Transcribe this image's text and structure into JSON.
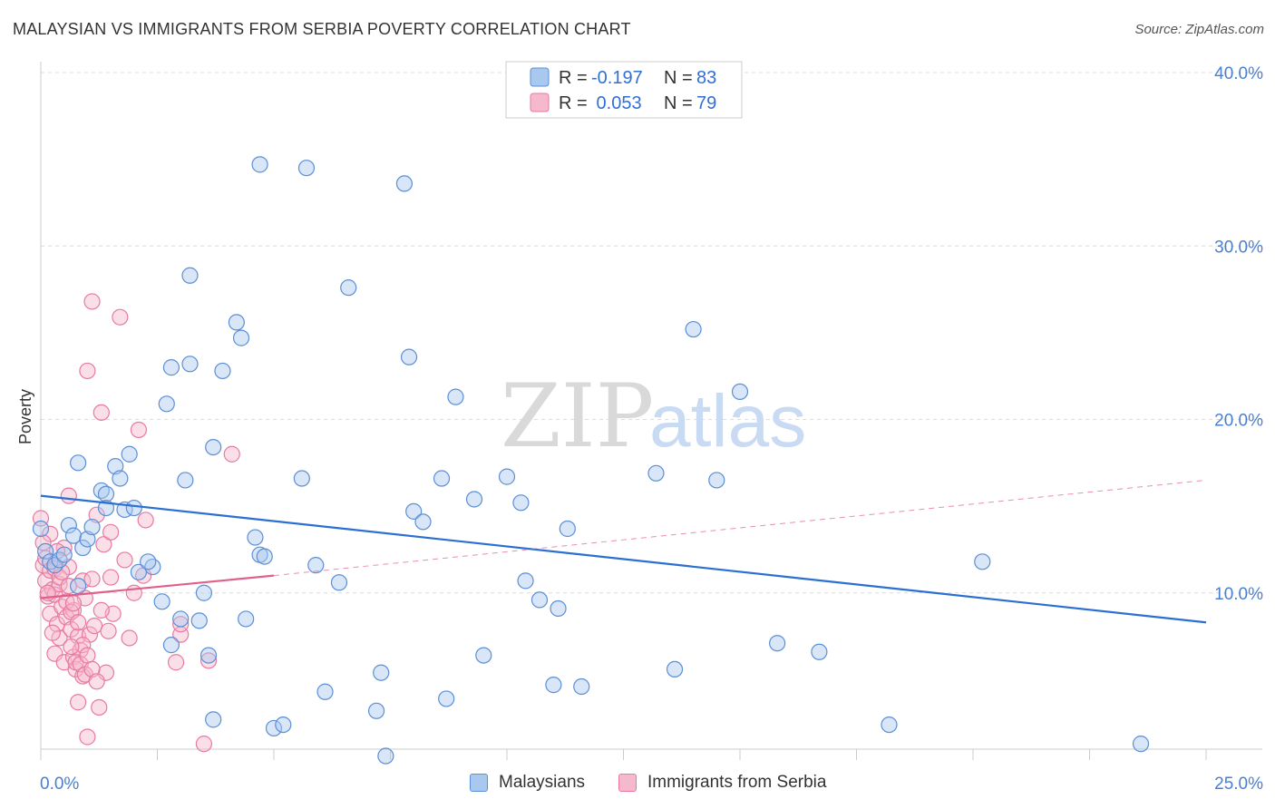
{
  "header": {
    "title": "MALAYSIAN VS IMMIGRANTS FROM SERBIA POVERTY CORRELATION CHART",
    "source": "Source: ZipAtlas.com"
  },
  "watermark": {
    "zip": "ZIP",
    "atlas": "atlas"
  },
  "colors": {
    "blue_fill": "#a8c8f0",
    "blue_stroke": "#5b8fd6",
    "blue_line": "#2a6fd1",
    "pink_fill": "#f6b8cc",
    "pink_stroke": "#e87aa0",
    "pink_line": "#e0608a",
    "grid": "#dcdcdc",
    "tick_text": "#4a7fd0"
  },
  "legend": {
    "rows": [
      {
        "r_label": "R =",
        "r_value": "-0.197",
        "n_label": "N =",
        "n_value": "83"
      },
      {
        "r_label": "R =",
        "r_value": " 0.053",
        "n_label": "N =",
        "n_value": "79"
      }
    ]
  },
  "bottom_legend": {
    "blue": "Malaysians",
    "pink": "Immigrants from Serbia"
  },
  "chart_data": {
    "type": "scatter",
    "xlabel": "",
    "ylabel": "Poverty",
    "xlim": [
      0,
      25
    ],
    "ylim": [
      0,
      40
    ],
    "x_tick_labels": [
      "0.0%",
      "25.0%"
    ],
    "y_ticks": [
      10,
      20,
      30,
      40
    ],
    "y_tick_labels": [
      "10.0%",
      "20.0%",
      "30.0%",
      "40.0%"
    ],
    "legend_position": "top-center",
    "series": [
      {
        "name": "Malaysians",
        "color": "#5b8fd6",
        "trend": {
          "x": [
            0,
            25
          ],
          "y": [
            15.6,
            8.3
          ]
        },
        "points": [
          [
            0.0,
            13.7
          ],
          [
            0.1,
            12.4
          ],
          [
            0.2,
            11.8
          ],
          [
            0.3,
            11.6
          ],
          [
            0.4,
            11.9
          ],
          [
            0.5,
            12.2
          ],
          [
            0.6,
            13.9
          ],
          [
            0.7,
            13.3
          ],
          [
            0.8,
            10.4
          ],
          [
            0.9,
            12.6
          ],
          [
            1.0,
            13.1
          ],
          [
            1.1,
            13.8
          ],
          [
            1.3,
            15.9
          ],
          [
            1.4,
            15.7
          ],
          [
            1.6,
            17.3
          ],
          [
            1.7,
            16.6
          ],
          [
            1.8,
            14.8
          ],
          [
            1.9,
            18.0
          ],
          [
            2.0,
            14.9
          ],
          [
            2.1,
            11.2
          ],
          [
            2.4,
            11.5
          ],
          [
            2.6,
            9.5
          ],
          [
            2.7,
            20.9
          ],
          [
            2.8,
            23.0
          ],
          [
            3.0,
            8.5
          ],
          [
            3.1,
            16.5
          ],
          [
            3.2,
            23.2
          ],
          [
            3.4,
            8.4
          ],
          [
            3.5,
            10.0
          ],
          [
            3.6,
            6.4
          ],
          [
            3.7,
            2.7
          ],
          [
            3.9,
            22.8
          ],
          [
            4.2,
            25.6
          ],
          [
            4.3,
            24.7
          ],
          [
            4.4,
            8.5
          ],
          [
            4.6,
            13.2
          ],
          [
            4.7,
            12.2
          ],
          [
            4.8,
            12.1
          ],
          [
            5.0,
            2.2
          ],
          [
            5.6,
            16.6
          ],
          [
            5.9,
            11.6
          ],
          [
            6.1,
            4.3
          ],
          [
            6.4,
            10.6
          ],
          [
            6.6,
            27.6
          ],
          [
            7.2,
            3.2
          ],
          [
            7.3,
            5.4
          ],
          [
            7.4,
            0.6
          ],
          [
            8.0,
            14.7
          ],
          [
            8.2,
            14.1
          ],
          [
            8.6,
            16.6
          ],
          [
            8.7,
            3.9
          ],
          [
            8.9,
            21.3
          ],
          [
            9.3,
            15.4
          ],
          [
            9.5,
            6.4
          ],
          [
            10.0,
            16.7
          ],
          [
            10.3,
            15.2
          ],
          [
            10.4,
            10.7
          ],
          [
            10.7,
            9.6
          ],
          [
            11.0,
            4.7
          ],
          [
            11.1,
            9.1
          ],
          [
            11.3,
            13.7
          ],
          [
            11.6,
            4.6
          ],
          [
            13.2,
            16.9
          ],
          [
            13.6,
            5.6
          ],
          [
            14.0,
            25.2
          ],
          [
            14.5,
            16.5
          ],
          [
            15.0,
            21.6
          ],
          [
            15.8,
            7.1
          ],
          [
            16.7,
            6.6
          ],
          [
            18.2,
            2.4
          ],
          [
            20.2,
            11.8
          ],
          [
            23.6,
            1.3
          ],
          [
            3.7,
            18.4
          ],
          [
            4.7,
            34.7
          ],
          [
            5.7,
            34.5
          ],
          [
            7.8,
            33.6
          ],
          [
            3.2,
            28.3
          ],
          [
            7.9,
            23.6
          ],
          [
            5.2,
            2.4
          ],
          [
            2.3,
            11.8
          ],
          [
            1.4,
            14.9
          ],
          [
            0.8,
            17.5
          ],
          [
            2.8,
            7.0
          ]
        ]
      },
      {
        "name": "Immigrants from Serbia",
        "color": "#e87aa0",
        "trend": {
          "x": [
            0,
            5
          ],
          "y": [
            9.7,
            11.0
          ]
        },
        "trend_dashed": {
          "x": [
            5,
            25
          ],
          "y": [
            11.0,
            16.5
          ]
        },
        "points": [
          [
            0.0,
            14.3
          ],
          [
            0.05,
            11.6
          ],
          [
            0.1,
            10.7
          ],
          [
            0.1,
            12.0
          ],
          [
            0.15,
            9.8
          ],
          [
            0.2,
            8.8
          ],
          [
            0.2,
            11.3
          ],
          [
            0.25,
            10.2
          ],
          [
            0.3,
            9.9
          ],
          [
            0.3,
            6.5
          ],
          [
            0.35,
            8.2
          ],
          [
            0.4,
            10.5
          ],
          [
            0.4,
            7.4
          ],
          [
            0.45,
            9.2
          ],
          [
            0.5,
            12.6
          ],
          [
            0.5,
            6.0
          ],
          [
            0.55,
            8.6
          ],
          [
            0.6,
            11.5
          ],
          [
            0.6,
            15.6
          ],
          [
            0.65,
            7.9
          ],
          [
            0.7,
            6.3
          ],
          [
            0.7,
            9.0
          ],
          [
            0.75,
            5.6
          ],
          [
            0.8,
            3.7
          ],
          [
            0.8,
            7.5
          ],
          [
            0.85,
            6.7
          ],
          [
            0.9,
            10.7
          ],
          [
            0.9,
            5.2
          ],
          [
            0.95,
            9.7
          ],
          [
            1.0,
            1.7
          ],
          [
            1.0,
            22.8
          ],
          [
            1.05,
            7.6
          ],
          [
            1.1,
            26.8
          ],
          [
            1.1,
            10.8
          ],
          [
            1.15,
            8.1
          ],
          [
            1.2,
            14.5
          ],
          [
            1.25,
            3.4
          ],
          [
            1.3,
            20.4
          ],
          [
            1.35,
            12.8
          ],
          [
            1.4,
            5.4
          ],
          [
            1.45,
            7.8
          ],
          [
            1.5,
            10.9
          ],
          [
            1.55,
            8.8
          ],
          [
            1.7,
            25.9
          ],
          [
            1.8,
            11.9
          ],
          [
            1.9,
            7.4
          ],
          [
            2.0,
            10.0
          ],
          [
            2.1,
            19.4
          ],
          [
            2.2,
            11.0
          ],
          [
            2.25,
            14.2
          ],
          [
            2.9,
            6.0
          ],
          [
            3.0,
            7.6
          ],
          [
            3.0,
            8.2
          ],
          [
            3.5,
            1.3
          ],
          [
            3.6,
            6.1
          ],
          [
            4.1,
            18.0
          ],
          [
            0.3,
            11.4
          ],
          [
            0.4,
            10.9
          ],
          [
            0.55,
            9.5
          ],
          [
            0.65,
            8.9
          ],
          [
            0.75,
            6.0
          ],
          [
            0.85,
            5.9
          ],
          [
            0.95,
            5.3
          ],
          [
            0.2,
            13.4
          ],
          [
            0.35,
            12.4
          ],
          [
            0.45,
            11.2
          ],
          [
            0.6,
            10.4
          ],
          [
            0.7,
            9.4
          ],
          [
            0.8,
            8.3
          ],
          [
            0.9,
            7.0
          ],
          [
            1.0,
            6.4
          ],
          [
            1.1,
            5.6
          ],
          [
            1.2,
            4.9
          ],
          [
            1.5,
            13.5
          ],
          [
            0.25,
            7.7
          ],
          [
            0.15,
            10.0
          ],
          [
            0.05,
            12.9
          ],
          [
            0.65,
            6.9
          ],
          [
            1.3,
            9.0
          ]
        ]
      }
    ]
  }
}
